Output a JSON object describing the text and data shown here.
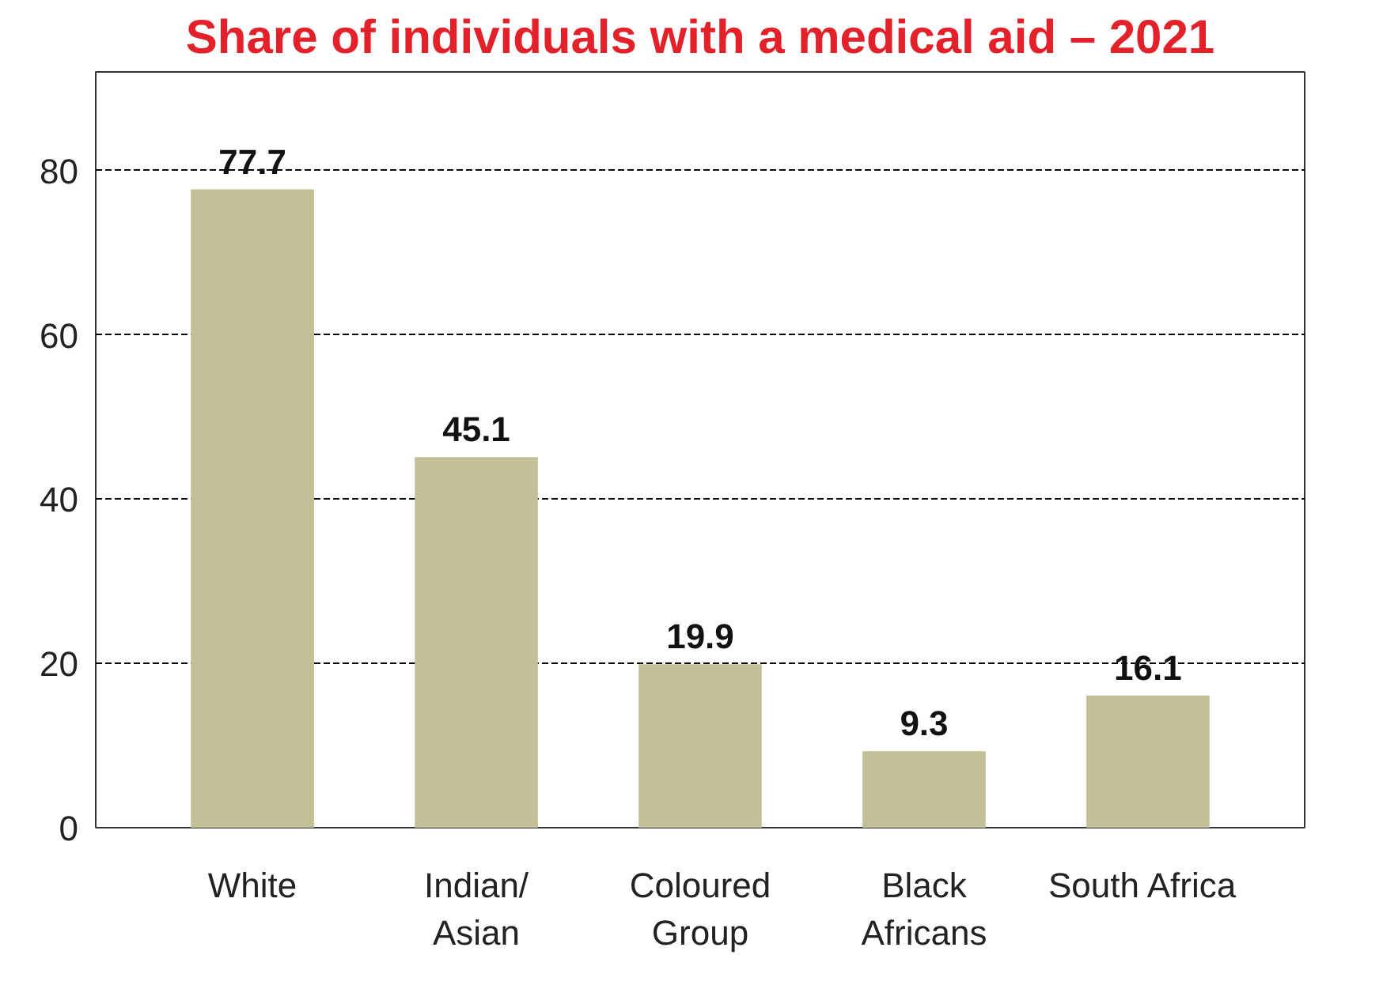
{
  "chart_data": {
    "type": "bar",
    "title": "Share of individuals with a medical aid – 2021",
    "categories": [
      "White",
      "Indian/\nAsian",
      "Coloured\nGroup",
      "Black\nAfricans",
      "South  Africa"
    ],
    "values": [
      77.7,
      45.1,
      19.9,
      9.3,
      16.1
    ],
    "color": "#c2c096",
    "ylim": [
      0,
      92
    ],
    "yticks": [
      0,
      20,
      40,
      60,
      80
    ],
    "grid": "y",
    "data_labels": true
  }
}
